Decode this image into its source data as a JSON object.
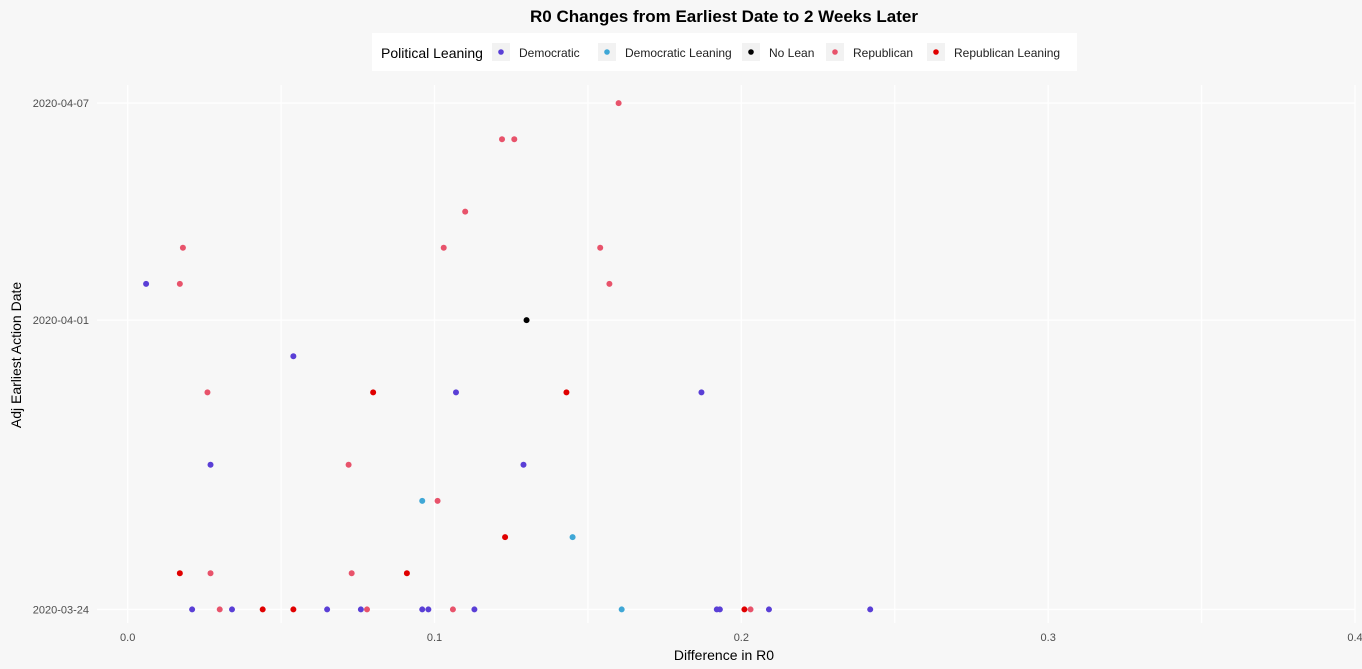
{
  "chart_data": {
    "type": "scatter",
    "title": "R0 Changes from Earliest Date to 2 Weeks Later",
    "xlabel": "Difference in R0",
    "ylabel": "Adj Earliest Action Date",
    "xlim": [
      -0.01,
      0.4
    ],
    "ylim": [
      "2020-03-23T15:00",
      "2020-04-07T12:00"
    ],
    "x_ticks": [
      {
        "value": 0.0,
        "label": "0.0"
      },
      {
        "value": 0.1,
        "label": "0.1"
      },
      {
        "value": 0.2,
        "label": "0.2"
      },
      {
        "value": 0.3,
        "label": "0.3"
      },
      {
        "value": 0.4,
        "label": "0.4"
      }
    ],
    "y_ticks": [
      {
        "value": "2020-03-24",
        "label": "2020-03-24"
      },
      {
        "value": "2020-04-01",
        "label": "2020-04-01"
      },
      {
        "value": "2020-04-07",
        "label": "2020-04-07"
      }
    ],
    "grid": true,
    "legend": {
      "title": "Political Leaning",
      "placement": "top",
      "entries": [
        {
          "label": "Democratic",
          "color": "#5a3fd6"
        },
        {
          "label": "Democratic Leaning",
          "color": "#3fa7d6"
        },
        {
          "label": "No Lean",
          "color": "#000000"
        },
        {
          "label": "Republican",
          "color": "#e8536b"
        },
        {
          "label": "Republican Leaning",
          "color": "#e00000"
        }
      ]
    },
    "series": [
      {
        "name": "Democratic",
        "color": "#5a3fd6",
        "points": [
          {
            "x": 0.006,
            "y": "2020-04-02"
          },
          {
            "x": 0.054,
            "y": "2020-03-31"
          },
          {
            "x": 0.107,
            "y": "2020-03-30"
          },
          {
            "x": 0.187,
            "y": "2020-03-30"
          },
          {
            "x": 0.027,
            "y": "2020-03-28"
          },
          {
            "x": 0.129,
            "y": "2020-03-28"
          },
          {
            "x": 0.021,
            "y": "2020-03-24"
          },
          {
            "x": 0.034,
            "y": "2020-03-24"
          },
          {
            "x": 0.065,
            "y": "2020-03-24"
          },
          {
            "x": 0.076,
            "y": "2020-03-24"
          },
          {
            "x": 0.096,
            "y": "2020-03-24"
          },
          {
            "x": 0.098,
            "y": "2020-03-24"
          },
          {
            "x": 0.113,
            "y": "2020-03-24"
          },
          {
            "x": 0.192,
            "y": "2020-03-24"
          },
          {
            "x": 0.193,
            "y": "2020-03-24"
          },
          {
            "x": 0.209,
            "y": "2020-03-24"
          },
          {
            "x": 0.242,
            "y": "2020-03-24"
          }
        ]
      },
      {
        "name": "Democratic Leaning",
        "color": "#3fa7d6",
        "points": [
          {
            "x": 0.096,
            "y": "2020-03-27"
          },
          {
            "x": 0.145,
            "y": "2020-03-26"
          },
          {
            "x": 0.161,
            "y": "2020-03-24"
          }
        ]
      },
      {
        "name": "No Lean",
        "color": "#000000",
        "points": [
          {
            "x": 0.13,
            "y": "2020-04-01"
          }
        ]
      },
      {
        "name": "Republican",
        "color": "#e8536b",
        "points": [
          {
            "x": 0.16,
            "y": "2020-04-07"
          },
          {
            "x": 0.122,
            "y": "2020-04-06"
          },
          {
            "x": 0.126,
            "y": "2020-04-06"
          },
          {
            "x": 0.11,
            "y": "2020-04-04"
          },
          {
            "x": 0.018,
            "y": "2020-04-03"
          },
          {
            "x": 0.103,
            "y": "2020-04-03"
          },
          {
            "x": 0.154,
            "y": "2020-04-03"
          },
          {
            "x": 0.017,
            "y": "2020-04-02"
          },
          {
            "x": 0.157,
            "y": "2020-04-02"
          },
          {
            "x": 0.026,
            "y": "2020-03-30"
          },
          {
            "x": 0.072,
            "y": "2020-03-28"
          },
          {
            "x": 0.101,
            "y": "2020-03-27"
          },
          {
            "x": 0.027,
            "y": "2020-03-25"
          },
          {
            "x": 0.073,
            "y": "2020-03-25"
          },
          {
            "x": 0.03,
            "y": "2020-03-24"
          },
          {
            "x": 0.078,
            "y": "2020-03-24"
          },
          {
            "x": 0.106,
            "y": "2020-03-24"
          },
          {
            "x": 0.203,
            "y": "2020-03-24"
          }
        ]
      },
      {
        "name": "Republican Leaning",
        "color": "#e00000",
        "points": [
          {
            "x": 0.08,
            "y": "2020-03-30"
          },
          {
            "x": 0.143,
            "y": "2020-03-30"
          },
          {
            "x": 0.123,
            "y": "2020-03-26"
          },
          {
            "x": 0.017,
            "y": "2020-03-25"
          },
          {
            "x": 0.091,
            "y": "2020-03-25"
          },
          {
            "x": 0.044,
            "y": "2020-03-24"
          },
          {
            "x": 0.054,
            "y": "2020-03-24"
          },
          {
            "x": 0.201,
            "y": "2020-03-24"
          }
        ]
      }
    ]
  }
}
